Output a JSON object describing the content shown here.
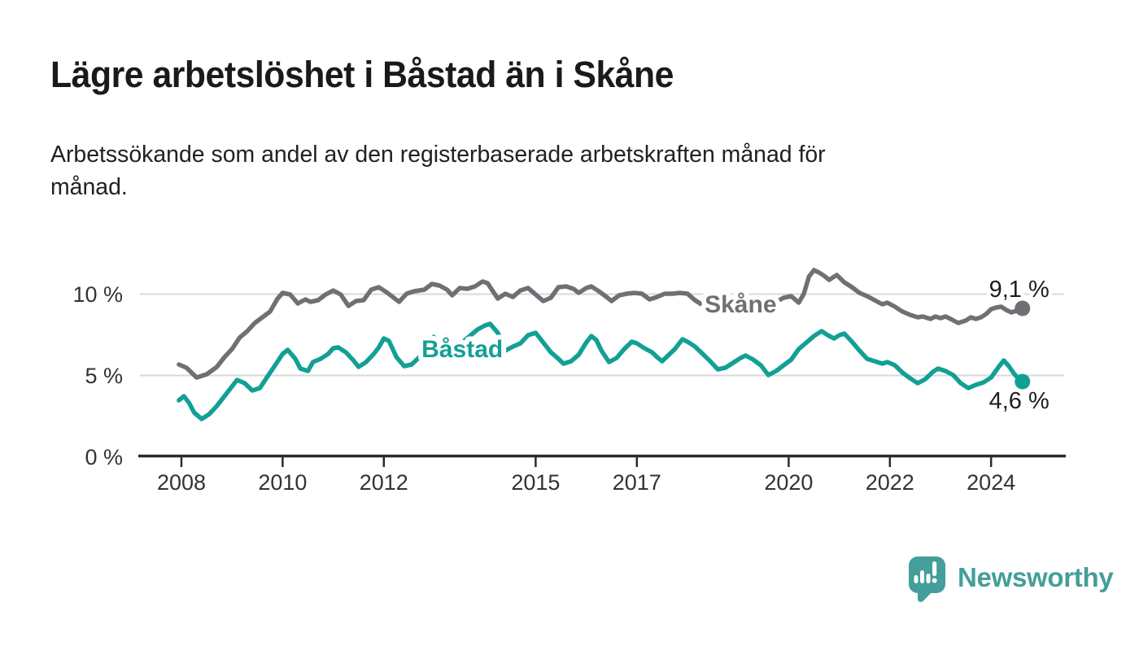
{
  "header": {
    "title": "Lägre arbetslöshet i Båstad än i Skåne",
    "subtitle_line1": "Arbetssökande som andel av den registerbaserade arbetskraften månad för",
    "subtitle_line2": "månad."
  },
  "chart_data": {
    "type": "line",
    "title": "Lägre arbetslöshet i Båstad än i Skåne",
    "subtitle": "Arbetssökande som andel av den registerbaserade arbetskraften månad för månad.",
    "unit": "%",
    "grid": true,
    "legend_position": "inline-labels-on-lines",
    "x_axis": {
      "tick_labels": [
        "2008",
        "2010",
        "2012",
        "2015",
        "2017",
        "2020",
        "2022",
        "2024"
      ],
      "tick_values": [
        2008,
        2010,
        2012,
        2015,
        2017,
        2020,
        2022,
        2024
      ],
      "range_years": [
        2007.9,
        2025.5
      ]
    },
    "y_axis": {
      "tick_labels": [
        "0 %",
        "5 %",
        "10 %"
      ],
      "tick_values": [
        0,
        5,
        10
      ],
      "range": [
        0,
        12.5
      ]
    },
    "series": [
      {
        "name": "Skåne",
        "color": "#6f7075",
        "end_label": "9,1 %",
        "end_value": 9.1,
        "end_label_side": "above",
        "label_anchor": {
          "year": 2019.05,
          "value": 8.85
        },
        "points": [
          [
            2007.95,
            5.65
          ],
          [
            2008.1,
            5.45
          ],
          [
            2008.3,
            4.85
          ],
          [
            2008.5,
            5.05
          ],
          [
            2008.7,
            5.5
          ],
          [
            2008.85,
            6.1
          ],
          [
            2009.0,
            6.6
          ],
          [
            2009.15,
            7.3
          ],
          [
            2009.3,
            7.7
          ],
          [
            2009.45,
            8.2
          ],
          [
            2009.6,
            8.55
          ],
          [
            2009.75,
            8.9
          ],
          [
            2009.9,
            9.7
          ],
          [
            2010.0,
            10.05
          ],
          [
            2010.15,
            9.95
          ],
          [
            2010.3,
            9.4
          ],
          [
            2010.45,
            9.65
          ],
          [
            2010.55,
            9.5
          ],
          [
            2010.7,
            9.6
          ],
          [
            2010.85,
            9.95
          ],
          [
            2011.0,
            10.2
          ],
          [
            2011.15,
            9.95
          ],
          [
            2011.3,
            9.25
          ],
          [
            2011.45,
            9.55
          ],
          [
            2011.6,
            9.6
          ],
          [
            2011.75,
            10.25
          ],
          [
            2011.9,
            10.4
          ],
          [
            2012.05,
            10.1
          ],
          [
            2012.3,
            9.5
          ],
          [
            2012.45,
            10.0
          ],
          [
            2012.6,
            10.15
          ],
          [
            2012.8,
            10.25
          ],
          [
            2012.95,
            10.6
          ],
          [
            2013.1,
            10.5
          ],
          [
            2013.25,
            10.25
          ],
          [
            2013.35,
            9.9
          ],
          [
            2013.5,
            10.35
          ],
          [
            2013.65,
            10.3
          ],
          [
            2013.8,
            10.45
          ],
          [
            2013.95,
            10.75
          ],
          [
            2014.05,
            10.65
          ],
          [
            2014.25,
            9.7
          ],
          [
            2014.4,
            10.0
          ],
          [
            2014.55,
            9.8
          ],
          [
            2014.7,
            10.2
          ],
          [
            2014.85,
            10.35
          ],
          [
            2015.0,
            9.95
          ],
          [
            2015.15,
            9.55
          ],
          [
            2015.3,
            9.75
          ],
          [
            2015.45,
            10.4
          ],
          [
            2015.6,
            10.45
          ],
          [
            2015.75,
            10.3
          ],
          [
            2015.85,
            10.05
          ],
          [
            2016.0,
            10.35
          ],
          [
            2016.1,
            10.45
          ],
          [
            2016.25,
            10.15
          ],
          [
            2016.4,
            9.8
          ],
          [
            2016.5,
            9.55
          ],
          [
            2016.65,
            9.9
          ],
          [
            2016.8,
            10.0
          ],
          [
            2016.95,
            10.05
          ],
          [
            2017.1,
            10.0
          ],
          [
            2017.25,
            9.65
          ],
          [
            2017.4,
            9.8
          ],
          [
            2017.55,
            10.0
          ],
          [
            2017.7,
            10.0
          ],
          [
            2017.85,
            10.05
          ],
          [
            2018.0,
            10.0
          ],
          [
            2018.15,
            9.6
          ],
          [
            2018.3,
            9.3
          ],
          [
            2018.5,
            9.45
          ],
          [
            2018.65,
            9.65
          ],
          [
            2018.8,
            9.8
          ],
          [
            2019.0,
            9.75
          ],
          [
            2019.2,
            9.55
          ],
          [
            2019.4,
            9.45
          ],
          [
            2019.6,
            9.6
          ],
          [
            2019.75,
            9.5
          ],
          [
            2019.9,
            9.75
          ],
          [
            2020.05,
            9.85
          ],
          [
            2020.2,
            9.45
          ],
          [
            2020.3,
            10.0
          ],
          [
            2020.4,
            11.05
          ],
          [
            2020.5,
            11.45
          ],
          [
            2020.6,
            11.3
          ],
          [
            2020.7,
            11.1
          ],
          [
            2020.8,
            10.85
          ],
          [
            2020.95,
            11.15
          ],
          [
            2021.1,
            10.7
          ],
          [
            2021.25,
            10.4
          ],
          [
            2021.4,
            10.05
          ],
          [
            2021.55,
            9.85
          ],
          [
            2021.7,
            9.6
          ],
          [
            2021.85,
            9.35
          ],
          [
            2021.95,
            9.45
          ],
          [
            2022.1,
            9.2
          ],
          [
            2022.25,
            8.9
          ],
          [
            2022.4,
            8.7
          ],
          [
            2022.55,
            8.55
          ],
          [
            2022.65,
            8.6
          ],
          [
            2022.8,
            8.45
          ],
          [
            2022.9,
            8.6
          ],
          [
            2023.0,
            8.5
          ],
          [
            2023.1,
            8.6
          ],
          [
            2023.2,
            8.45
          ],
          [
            2023.35,
            8.2
          ],
          [
            2023.5,
            8.35
          ],
          [
            2023.6,
            8.55
          ],
          [
            2023.7,
            8.45
          ],
          [
            2023.8,
            8.55
          ],
          [
            2023.9,
            8.75
          ],
          [
            2024.0,
            9.05
          ],
          [
            2024.1,
            9.15
          ],
          [
            2024.2,
            9.2
          ],
          [
            2024.3,
            9.0
          ],
          [
            2024.4,
            8.85
          ],
          [
            2024.5,
            8.95
          ],
          [
            2024.62,
            9.1
          ]
        ]
      },
      {
        "name": "Båstad",
        "color": "#12a095",
        "end_label": "4,6 %",
        "end_value": 4.6,
        "end_label_side": "below",
        "label_anchor": {
          "year": 2013.55,
          "value": 6.1
        },
        "points": [
          [
            2007.95,
            3.45
          ],
          [
            2008.05,
            3.7
          ],
          [
            2008.15,
            3.3
          ],
          [
            2008.25,
            2.7
          ],
          [
            2008.4,
            2.3
          ],
          [
            2008.55,
            2.6
          ],
          [
            2008.7,
            3.1
          ],
          [
            2008.85,
            3.7
          ],
          [
            2009.0,
            4.3
          ],
          [
            2009.1,
            4.7
          ],
          [
            2009.25,
            4.5
          ],
          [
            2009.4,
            4.05
          ],
          [
            2009.55,
            4.2
          ],
          [
            2009.7,
            4.9
          ],
          [
            2009.85,
            5.6
          ],
          [
            2010.0,
            6.3
          ],
          [
            2010.1,
            6.55
          ],
          [
            2010.25,
            6.0
          ],
          [
            2010.35,
            5.4
          ],
          [
            2010.5,
            5.25
          ],
          [
            2010.6,
            5.8
          ],
          [
            2010.75,
            6.0
          ],
          [
            2010.9,
            6.3
          ],
          [
            2011.0,
            6.65
          ],
          [
            2011.1,
            6.7
          ],
          [
            2011.25,
            6.4
          ],
          [
            2011.4,
            5.9
          ],
          [
            2011.5,
            5.5
          ],
          [
            2011.65,
            5.8
          ],
          [
            2011.8,
            6.3
          ],
          [
            2011.9,
            6.7
          ],
          [
            2012.0,
            7.25
          ],
          [
            2012.1,
            7.1
          ],
          [
            2012.25,
            6.1
          ],
          [
            2012.4,
            5.55
          ],
          [
            2012.55,
            5.65
          ],
          [
            2012.7,
            6.1
          ],
          [
            2012.85,
            6.7
          ],
          [
            2012.98,
            7.35
          ],
          [
            2013.1,
            7.0
          ],
          [
            2013.25,
            6.5
          ],
          [
            2013.4,
            6.6
          ],
          [
            2013.55,
            7.0
          ],
          [
            2013.7,
            7.4
          ],
          [
            2013.85,
            7.8
          ],
          [
            2014.0,
            8.05
          ],
          [
            2014.1,
            8.15
          ],
          [
            2014.25,
            7.6
          ],
          [
            2014.4,
            6.5
          ],
          [
            2014.55,
            6.75
          ],
          [
            2014.7,
            6.95
          ],
          [
            2014.85,
            7.45
          ],
          [
            2015.0,
            7.6
          ],
          [
            2015.15,
            7.0
          ],
          [
            2015.3,
            6.4
          ],
          [
            2015.45,
            6.0
          ],
          [
            2015.55,
            5.7
          ],
          [
            2015.7,
            5.85
          ],
          [
            2015.85,
            6.25
          ],
          [
            2016.0,
            7.0
          ],
          [
            2016.1,
            7.4
          ],
          [
            2016.2,
            7.15
          ],
          [
            2016.3,
            6.5
          ],
          [
            2016.45,
            5.8
          ],
          [
            2016.6,
            6.05
          ],
          [
            2016.75,
            6.6
          ],
          [
            2016.9,
            7.05
          ],
          [
            2017.0,
            6.95
          ],
          [
            2017.15,
            6.65
          ],
          [
            2017.3,
            6.4
          ],
          [
            2017.4,
            6.1
          ],
          [
            2017.5,
            5.85
          ],
          [
            2017.6,
            6.15
          ],
          [
            2017.75,
            6.6
          ],
          [
            2017.9,
            7.2
          ],
          [
            2018.0,
            7.05
          ],
          [
            2018.15,
            6.75
          ],
          [
            2018.3,
            6.3
          ],
          [
            2018.45,
            5.85
          ],
          [
            2018.6,
            5.35
          ],
          [
            2018.75,
            5.45
          ],
          [
            2018.9,
            5.75
          ],
          [
            2019.05,
            6.05
          ],
          [
            2019.15,
            6.2
          ],
          [
            2019.3,
            5.95
          ],
          [
            2019.45,
            5.6
          ],
          [
            2019.6,
            5.0
          ],
          [
            2019.75,
            5.25
          ],
          [
            2019.9,
            5.6
          ],
          [
            2020.05,
            5.95
          ],
          [
            2020.2,
            6.6
          ],
          [
            2020.35,
            7.0
          ],
          [
            2020.5,
            7.4
          ],
          [
            2020.65,
            7.7
          ],
          [
            2020.8,
            7.4
          ],
          [
            2020.9,
            7.25
          ],
          [
            2021.0,
            7.45
          ],
          [
            2021.1,
            7.55
          ],
          [
            2021.25,
            7.05
          ],
          [
            2021.4,
            6.5
          ],
          [
            2021.55,
            6.0
          ],
          [
            2021.7,
            5.85
          ],
          [
            2021.85,
            5.7
          ],
          [
            2021.95,
            5.8
          ],
          [
            2022.1,
            5.6
          ],
          [
            2022.25,
            5.15
          ],
          [
            2022.4,
            4.8
          ],
          [
            2022.55,
            4.5
          ],
          [
            2022.7,
            4.75
          ],
          [
            2022.85,
            5.2
          ],
          [
            2022.95,
            5.4
          ],
          [
            2023.1,
            5.25
          ],
          [
            2023.25,
            5.0
          ],
          [
            2023.4,
            4.5
          ],
          [
            2023.55,
            4.2
          ],
          [
            2023.7,
            4.4
          ],
          [
            2023.85,
            4.55
          ],
          [
            2024.0,
            4.85
          ],
          [
            2024.15,
            5.5
          ],
          [
            2024.25,
            5.9
          ],
          [
            2024.35,
            5.55
          ],
          [
            2024.45,
            5.1
          ],
          [
            2024.55,
            4.75
          ],
          [
            2024.62,
            4.6
          ]
        ]
      }
    ]
  },
  "branding": {
    "logo_text": "Newsworthy",
    "logo_color": "#449e99",
    "logo_icon": "speech-bubble-with-bar-chart-and-exclamation"
  }
}
